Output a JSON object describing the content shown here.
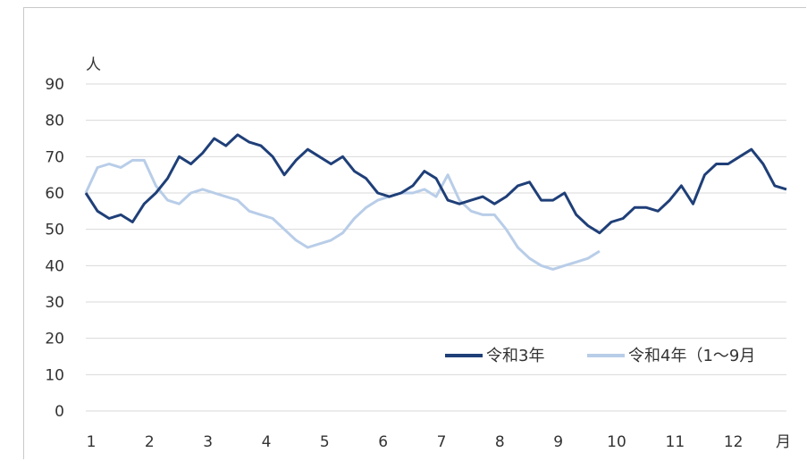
{
  "chart_data": {
    "type": "line",
    "y_unit": "人",
    "x_unit": "月",
    "ylim": [
      0,
      90
    ],
    "yticks": [
      0,
      10,
      20,
      30,
      40,
      50,
      60,
      70,
      80,
      90
    ],
    "xticks": [
      "1",
      "2",
      "3",
      "4",
      "5",
      "6",
      "7",
      "8",
      "9",
      "10",
      "11",
      "12"
    ],
    "grid": true,
    "legend_position": "bottom-right",
    "series": [
      {
        "name": "令和3年",
        "color": "#1f3f78",
        "x": [
          1.0,
          1.2,
          1.4,
          1.6,
          1.8,
          2.0,
          2.2,
          2.4,
          2.6,
          2.8,
          3.0,
          3.2,
          3.4,
          3.6,
          3.8,
          4.0,
          4.2,
          4.4,
          4.6,
          4.8,
          5.0,
          5.2,
          5.4,
          5.6,
          5.8,
          6.0,
          6.2,
          6.4,
          6.6,
          6.8,
          7.0,
          7.2,
          7.4,
          7.6,
          7.8,
          8.0,
          8.2,
          8.4,
          8.6,
          8.8,
          9.0,
          9.2,
          9.4,
          9.6,
          9.8,
          10.0,
          10.2,
          10.4,
          10.6,
          10.8,
          11.0,
          11.2,
          11.4,
          11.6,
          11.8,
          12.0,
          12.2,
          12.4,
          12.6,
          12.8,
          13.0
        ],
        "y": [
          60,
          55,
          53,
          54,
          52,
          57,
          60,
          64,
          70,
          68,
          71,
          75,
          73,
          76,
          74,
          73,
          70,
          65,
          69,
          72,
          70,
          68,
          70,
          66,
          64,
          60,
          59,
          60,
          62,
          66,
          64,
          58,
          57,
          58,
          59,
          57,
          59,
          62,
          63,
          58,
          58,
          60,
          54,
          51,
          49,
          52,
          53,
          56,
          56,
          55,
          58,
          62,
          57,
          65,
          68,
          68,
          70,
          72,
          68,
          62,
          61
        ]
      },
      {
        "name": "令和4年（1～9月",
        "color": "#b8cde8",
        "x": [
          1.0,
          1.2,
          1.4,
          1.6,
          1.8,
          2.0,
          2.2,
          2.4,
          2.6,
          2.8,
          3.0,
          3.2,
          3.4,
          3.6,
          3.8,
          4.0,
          4.2,
          4.4,
          4.6,
          4.8,
          5.0,
          5.2,
          5.4,
          5.6,
          5.8,
          6.0,
          6.2,
          6.4,
          6.6,
          6.8,
          7.0,
          7.2,
          7.4,
          7.6,
          7.8,
          8.0,
          8.2,
          8.4,
          8.6,
          8.8,
          9.0,
          9.2,
          9.4,
          9.6,
          9.8
        ],
        "y": [
          60,
          67,
          68,
          67,
          69,
          69,
          62,
          58,
          57,
          60,
          61,
          60,
          59,
          58,
          55,
          54,
          53,
          50,
          47,
          45,
          46,
          47,
          49,
          53,
          56,
          58,
          59,
          60,
          60,
          61,
          59,
          65,
          58,
          55,
          54,
          54,
          50,
          45,
          42,
          40,
          39,
          40,
          41,
          42,
          44
        ]
      }
    ]
  }
}
